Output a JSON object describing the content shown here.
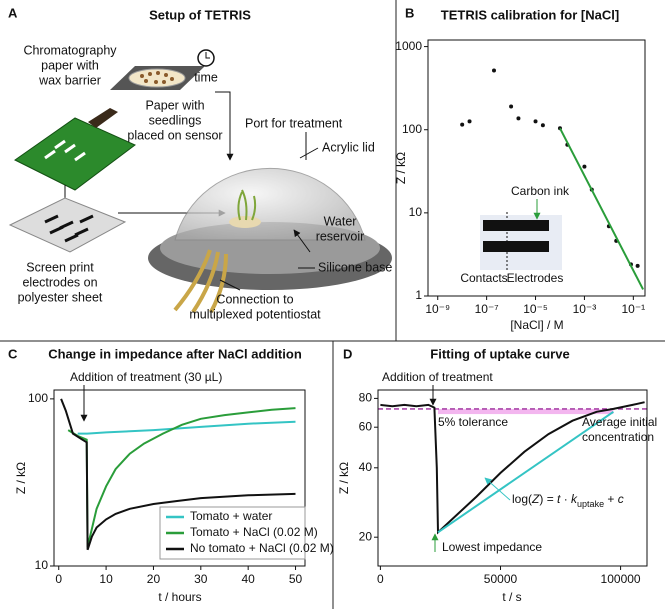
{
  "panel_a": {
    "panel": "A",
    "title": "Setup of TETRIS",
    "labels": [
      [
        "Chromatography",
        "paper with",
        "wax barrier"
      ],
      [
        "time"
      ],
      [
        "Paper with",
        "seedlings",
        "placed on sensor"
      ],
      [
        "Port for treatment"
      ],
      [
        "Acrylic lid"
      ],
      [
        "Screen print",
        "electrodes on",
        "polyester sheet"
      ],
      [
        "Water",
        "reservoir"
      ],
      [
        "Silicone base"
      ],
      [
        "Connection to",
        "multiplexed potentiostat"
      ]
    ]
  },
  "chart_data": [
    {
      "panel": "B",
      "type": "scatter",
      "title": "TETRIS calibration for [NaCl]",
      "xlabel": "[NaCl] / M",
      "ylabel": "Z / kΩ",
      "xlog": true,
      "ylog": true,
      "xlim": [
        4e-10,
        0.3
      ],
      "ylim": [
        1,
        1200
      ],
      "xticks": [
        {
          "value": 1e-09,
          "label": "10⁻⁹"
        },
        {
          "value": 1e-07,
          "label": "10⁻⁷"
        },
        {
          "value": 1e-05,
          "label": "10⁻⁵"
        },
        {
          "value": 0.001,
          "label": "10⁻³"
        },
        {
          "value": 0.1,
          "label": "10⁻¹"
        }
      ],
      "yticks": [
        1,
        10,
        100,
        1000
      ],
      "series": [
        {
          "mode": "markers",
          "color": "#111111",
          "x": [
            1e-08,
            2e-08,
            2e-07,
            1e-06,
            2e-06,
            1e-05,
            2e-05,
            0.0001,
            0.0002,
            0.001,
            0.002,
            0.01,
            0.02,
            0.08,
            0.15
          ],
          "values": [
            115,
            126,
            515,
            190,
            137,
            126,
            113,
            104,
            66,
            36,
            19,
            6.9,
            4.6,
            2.4,
            2.3
          ]
        },
        {
          "mode": "line",
          "color": "#2a9d3a",
          "x": [
            0.0001,
            0.25
          ],
          "values": [
            104,
            1.2
          ]
        }
      ],
      "inset_labels": [
        "Carbon ink",
        "Contacts",
        "Electrodes"
      ]
    },
    {
      "panel": "C",
      "type": "line",
      "title": "Change in impedance after NaCl addition",
      "xlabel": "t / hours",
      "ylabel": "Z / kΩ",
      "ylog": true,
      "xlim": [
        -1,
        52
      ],
      "ylim": [
        10,
        113
      ],
      "xticks": [
        0,
        10,
        20,
        30,
        40,
        50
      ],
      "yticks": [
        10,
        100
      ],
      "annotations": [
        "Addition of treatment (30 µL)"
      ],
      "series": [
        {
          "name": "Tomato + water",
          "color": "#34c4c4",
          "x": [
            4,
            6,
            10,
            20,
            30,
            40,
            50
          ],
          "values": [
            62,
            62,
            63,
            65,
            68,
            71,
            73
          ]
        },
        {
          "name": "Tomato + NaCl (0.02 M)",
          "color": "#2a9d3a",
          "x": [
            2,
            4,
            5.9,
            6.1,
            8,
            10,
            12,
            15,
            18,
            22,
            26,
            30,
            35,
            40,
            45,
            50
          ],
          "values": [
            65,
            60,
            57,
            13,
            22,
            30,
            38,
            47,
            54,
            62,
            70,
            76,
            80,
            83,
            86,
            88
          ]
        },
        {
          "name": "No tomato + NaCl (0.02 M)",
          "color": "#111111",
          "x": [
            0.5,
            1.5,
            3,
            5,
            5.9,
            6.1,
            7,
            8,
            10,
            12,
            15,
            20,
            25,
            30,
            40,
            50
          ],
          "values": [
            100,
            85,
            62,
            57,
            55,
            12.5,
            15,
            17,
            19,
            20.5,
            22,
            23.5,
            24.5,
            25.5,
            26.5,
            27
          ]
        }
      ]
    },
    {
      "panel": "D",
      "type": "line",
      "title": "Fitting of uptake curve",
      "xlabel": "t / s",
      "ylabel": "Z / kΩ",
      "ylog": true,
      "xlim": [
        -1000,
        111000
      ],
      "ylim": [
        15,
        87
      ],
      "xticks": [
        0,
        50000,
        100000
      ],
      "yticks": [
        20,
        40,
        60,
        80
      ],
      "band": {
        "x": [
          24000,
          97000
        ],
        "y": [
          68.4,
          72
        ],
        "color": "#f3b6ef"
      },
      "hline": {
        "value": 72,
        "color": "#9b2a9b"
      },
      "annotations": [
        "Addition of treatment",
        "5% tolerance",
        "Average initial",
        "concentration",
        "Lowest impedance"
      ],
      "equation": [
        "log(",
        "Z",
        ") = ",
        "t",
        " · ",
        "k",
        "uptake",
        " + ",
        "c"
      ],
      "series": [
        {
          "color": "#111111",
          "x": [
            0,
            5000,
            10000,
            15000,
            20000,
            22500,
            23500,
            24000,
            30000,
            40000,
            50000,
            60000,
            70000,
            80000,
            90000,
            97000,
            105000,
            110000
          ],
          "values": [
            75,
            74,
            75,
            74,
            75,
            73,
            40,
            21,
            24,
            30,
            38,
            47,
            56,
            64,
            70,
            72,
            75,
            77
          ]
        },
        {
          "color": "#34c4c4",
          "x": [
            24000,
            97000
          ],
          "values": [
            21,
            70
          ]
        }
      ]
    }
  ]
}
